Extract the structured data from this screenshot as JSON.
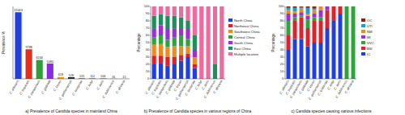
{
  "chart_data": [
    {
      "type": "bar",
      "title": "a) Prevalence of Candida species in mainland China",
      "y_label": "Prevalence %",
      "categories": [
        "C. albicans",
        "C. tropicalis",
        "C. parapsilosis",
        "C. glabrata",
        "C. krusei",
        "C. guilliermondii",
        "C. lusitaniae",
        "C. kefyr",
        "C. auris",
        "C. dubliniensis",
        "C. africana"
      ],
      "values": [
        22063,
        9788,
        6244,
        5080,
        618,
        526,
        131,
        112,
        106,
        31,
        15
      ],
      "colors": [
        "#2040e0",
        "#e03020",
        "#2e9e3a",
        "#8a2be2",
        "#f0a020",
        "#202020",
        "#202020",
        "#202020",
        "#202020",
        "#202020",
        "#202020"
      ],
      "ylim": [
        0,
        24000
      ],
      "tick_labels": "x",
      "data_labels": true,
      "grid": false
    },
    {
      "type": "bar",
      "stacked": true,
      "title": "b) Prevalence of Candida species in various regions of China",
      "y_label": "Percentage",
      "categories": [
        "C. albicans",
        "C. tropicalis",
        "C. parapsilosis",
        "C. glabrata",
        "C. krusei",
        "C. guilliermondii",
        "C. lusitaniae",
        "C. kefyr",
        "C. auris",
        "C. dubliniensis",
        "C. africana"
      ],
      "series": [
        {
          "name": "North China",
          "color": "#1f3fe0",
          "values": [
            20,
            22,
            18,
            20,
            25,
            30,
            15,
            0,
            0,
            0,
            0
          ]
        },
        {
          "name": "Northeast China",
          "color": "#e0202b",
          "values": [
            12,
            10,
            12,
            10,
            8,
            5,
            5,
            0,
            0,
            0,
            0
          ]
        },
        {
          "name": "Southwest China",
          "color": "#f08a20",
          "values": [
            15,
            16,
            14,
            15,
            12,
            10,
            10,
            0,
            0,
            0,
            0
          ]
        },
        {
          "name": "Central China",
          "color": "#2ea43a",
          "values": [
            10,
            12,
            10,
            12,
            15,
            10,
            0,
            0,
            0,
            0,
            0
          ]
        },
        {
          "name": "South China",
          "color": "#9b2fd8",
          "values": [
            12,
            14,
            16,
            12,
            10,
            15,
            10,
            0,
            0,
            0,
            0
          ]
        },
        {
          "name": "East China",
          "color": "#1c8f5a",
          "values": [
            18,
            15,
            17,
            18,
            15,
            10,
            20,
            0,
            0,
            20,
            0
          ]
        },
        {
          "name": "Multiple location",
          "color": "#f06aa0",
          "values": [
            13,
            11,
            13,
            13,
            15,
            20,
            40,
            100,
            100,
            80,
            100
          ]
        }
      ],
      "ylim": [
        0,
        100
      ],
      "yticks": [
        0,
        10,
        20,
        30,
        40,
        50,
        60,
        70,
        80,
        90,
        100
      ],
      "legend": "right",
      "grid": false
    },
    {
      "type": "bar",
      "stacked": true,
      "title": "c) Candida species causing various infections",
      "y_label": "Percentage",
      "categories": [
        "C. albicans",
        "C. tropicalis",
        "C. parapsilosis",
        "C. glabrata",
        "C. krusei",
        "C. guilliermondii",
        "C. lusitaniae",
        "C. kefyr",
        "C. auris",
        "C. dubliniensis",
        "C. africana"
      ],
      "series": [
        {
          "name": "IC",
          "color": "#1f3fe0",
          "values": [
            40,
            55,
            55,
            45,
            50,
            50,
            70,
            80,
            90,
            0,
            0
          ]
        },
        {
          "name": "BSI",
          "color": "#e0202b",
          "values": [
            20,
            25,
            30,
            25,
            30,
            30,
            25,
            20,
            10,
            0,
            0
          ]
        },
        {
          "name": "VVC",
          "color": "#2ea43a",
          "values": [
            20,
            5,
            2,
            12,
            5,
            5,
            0,
            0,
            0,
            100,
            100
          ]
        },
        {
          "name": "MI",
          "color": "#9b2fd8",
          "values": [
            10,
            5,
            5,
            5,
            5,
            10,
            5,
            0,
            0,
            0,
            0
          ]
        },
        {
          "name": "NM",
          "color": "#f08a20",
          "values": [
            5,
            3,
            5,
            3,
            5,
            5,
            0,
            0,
            0,
            0,
            0
          ]
        },
        {
          "name": "UTI",
          "color": "#1aa0d8",
          "values": [
            3,
            5,
            2,
            8,
            2,
            0,
            0,
            0,
            0,
            0,
            0
          ]
        },
        {
          "name": "OC",
          "color": "#7a2a10",
          "values": [
            2,
            2,
            1,
            2,
            3,
            0,
            0,
            0,
            0,
            0,
            0
          ]
        }
      ],
      "ylim": [
        0,
        100
      ],
      "yticks": [
        0,
        10,
        20,
        30,
        40,
        50,
        60,
        70,
        80,
        90,
        100
      ],
      "legend": "right",
      "grid": false
    }
  ]
}
